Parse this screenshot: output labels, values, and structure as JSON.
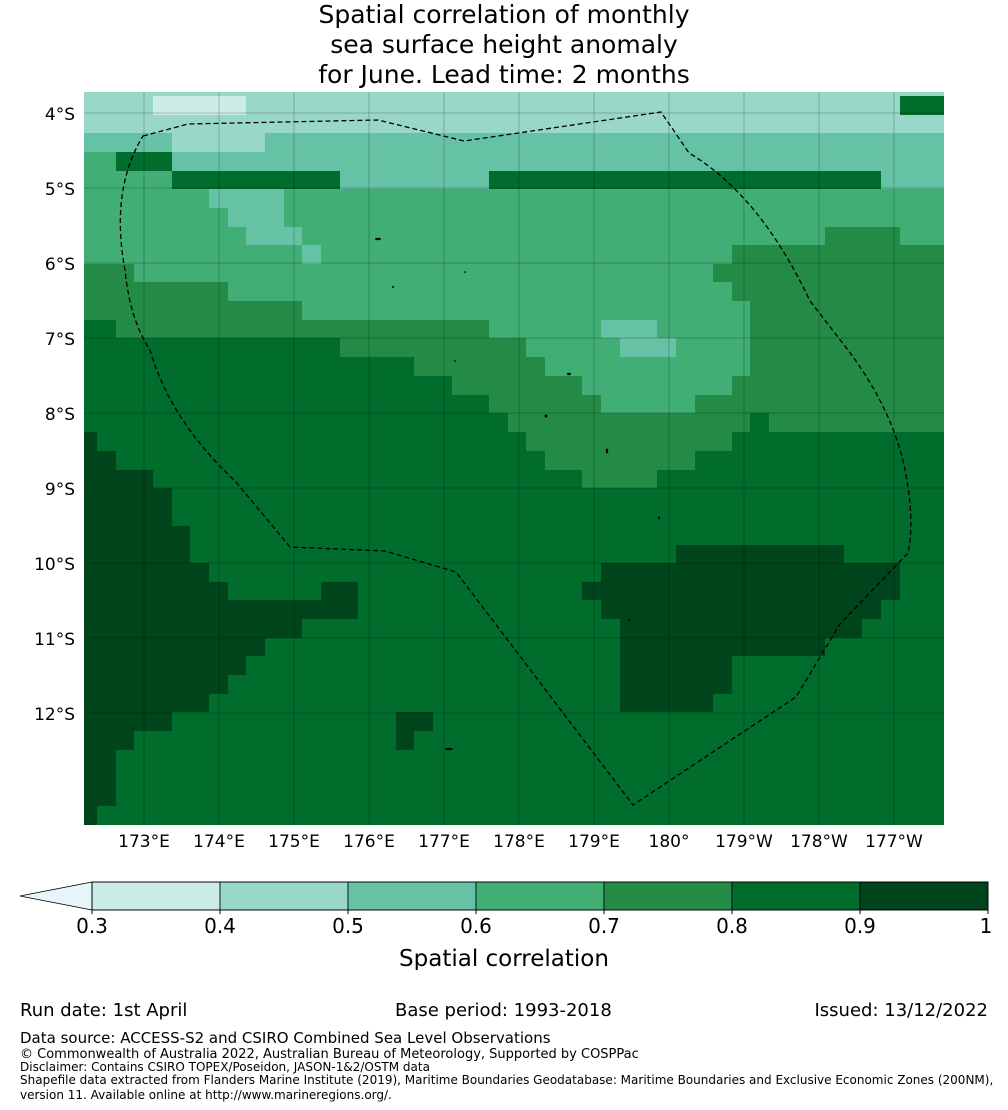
{
  "title": {
    "lines": [
      "Spatial correlation of monthly",
      "sea surface height anomaly",
      "for June. Lead time: 2 months"
    ]
  },
  "map": {
    "lat_labels": [
      "4°S",
      "5°S",
      "6°S",
      "7°S",
      "8°S",
      "9°S",
      "10°S",
      "11°S",
      "12°S"
    ],
    "lon_labels": [
      "173°E",
      "174°E",
      "175°E",
      "176°E",
      "177°E",
      "178°E",
      "179°E",
      "180°",
      "179°W",
      "178°W",
      "177°W"
    ],
    "boundary_style": "dashed black line",
    "field_description": "Gridded spatial correlation field; lower values (0.4-0.6) in north, highest (>0.9) in west and south-centre"
  },
  "colorbar": {
    "label": "Spatial correlation",
    "ticks": [
      "0.3",
      "0.4",
      "0.5",
      "0.6",
      "0.7",
      "0.8",
      "0.9",
      "1"
    ],
    "levels": [
      0.3,
      0.4,
      0.5,
      0.6,
      0.7,
      0.8,
      0.9,
      1.0
    ],
    "under_color": "#e5f5f9",
    "colors": [
      "#ccece6",
      "#99d8c9",
      "#66c2a4",
      "#41ae76",
      "#238b45",
      "#006d2c",
      "#00441b"
    ]
  },
  "footer": {
    "run_date": "Run date: 1st April",
    "base_period": "Base period: 1993-2018",
    "issued": "Issued: 13/12/2022",
    "data_source": "Data source: ACCESS-S2 and CSIRO Combined Sea Level Observations",
    "copyright": "© Commonwealth of Australia 2022, Australian Bureau of Meteorology, Supported by COSPPac",
    "disclaimer": "Disclaimer: Contains CSIRO TOPEX/Poseidon, JASON-1&2/OSTM data",
    "shapefile_line1": "Shapefile data extracted from Flanders Marine Institute (2019), Maritime Boundaries Geodatabase: Maritime Boundaries and Exclusive Economic Zones (200NM),",
    "shapefile_line2": "version 11. Available online at http://www.marineregions.org/."
  }
}
